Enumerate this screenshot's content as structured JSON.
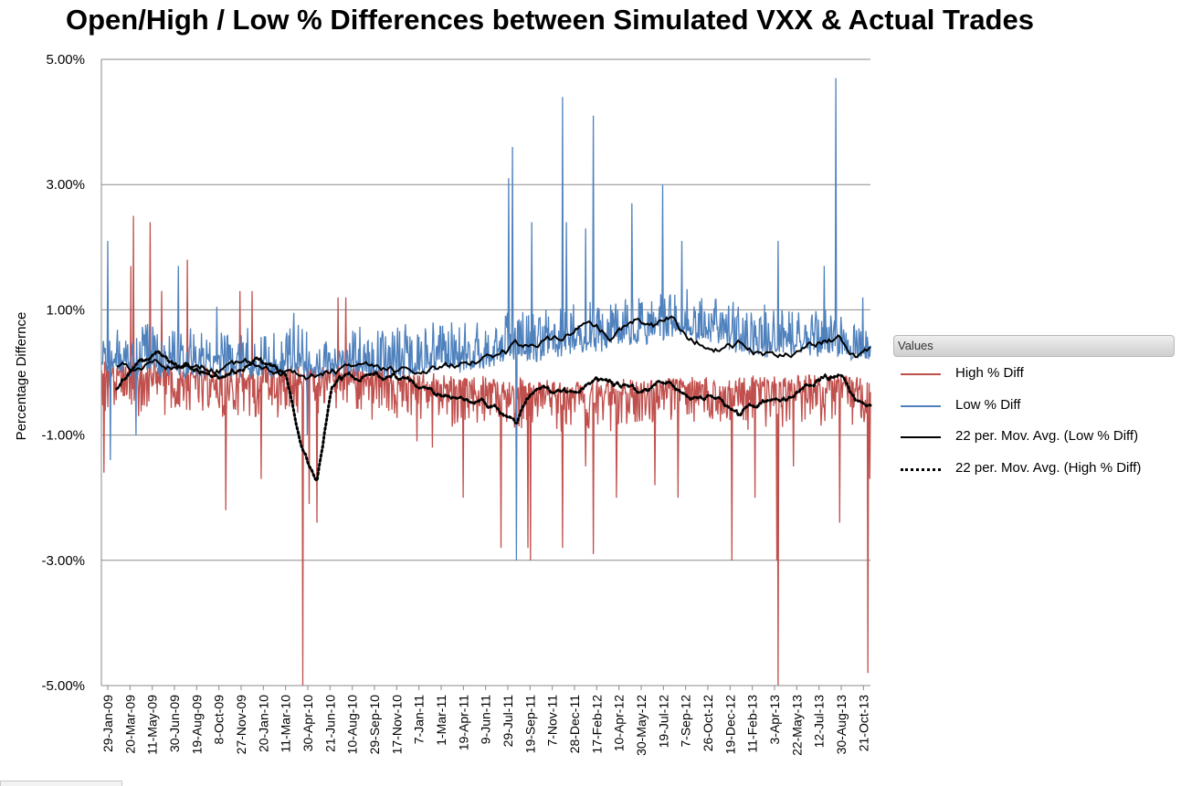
{
  "chart_data": {
    "type": "line",
    "title": "Open/High / Low % Differences between Simulated VXX & Actual Trades",
    "ylabel": "Percentage Differnce",
    "xlabel": "",
    "ylim": [
      -0.05,
      0.05
    ],
    "yticks": [
      0.05,
      0.03,
      0.01,
      -0.01,
      -0.03,
      -0.05
    ],
    "ytick_labels": [
      "5.00%",
      "3.00%",
      "1.00%",
      "-1.00%",
      "-3.00%",
      "-5.00%"
    ],
    "grid": "horizontal",
    "x_start": "2009-01-29",
    "x_end": "2013-10-31",
    "x_tick_labels": [
      "29-Jan-09",
      "20-Mar-09",
      "11-May-09",
      "30-Jun-09",
      "19-Aug-09",
      "8-Oct-09",
      "27-Nov-09",
      "20-Jan-10",
      "11-Mar-10",
      "30-Apr-10",
      "21-Jun-10",
      "10-Aug-10",
      "29-Sep-10",
      "17-Nov-10",
      "7-Jan-11",
      "1-Mar-11",
      "19-Apr-11",
      "9-Jun-11",
      "29-Jul-11",
      "19-Sep-11",
      "7-Nov-11",
      "28-Dec-11",
      "17-Feb-12",
      "10-Apr-12",
      "30-May-12",
      "19-Jul-12",
      "7-Sep-12",
      "26-Oct-12",
      "19-Dec-12",
      "11-Feb-13",
      "3-Apr-13",
      "22-May-13",
      "12-Jul-13",
      "30-Aug-13",
      "21-Oct-13"
    ],
    "legend_position": "right",
    "legend_title": "Values",
    "series": [
      {
        "name": "High % Diff",
        "color": "#c0504d",
        "style": "solid",
        "baseline": [
          [
            0.0,
            0.0005
          ],
          [
            0.08,
            0.0002
          ],
          [
            0.18,
            -0.0004
          ],
          [
            0.28,
            -0.0003
          ],
          [
            0.36,
            -0.0006
          ],
          [
            0.42,
            -0.0015
          ],
          [
            0.5,
            -0.002
          ],
          [
            0.6,
            -0.003
          ],
          [
            0.72,
            -0.0025
          ],
          [
            0.85,
            -0.002
          ],
          [
            1.0,
            -0.002
          ]
        ],
        "noise": 0.0045,
        "spikes": [
          [
            0.003,
            -0.016
          ],
          [
            0.038,
            0.017
          ],
          [
            0.042,
            0.025
          ],
          [
            0.063,
            0.024
          ],
          [
            0.078,
            0.013
          ],
          [
            0.112,
            0.018
          ],
          [
            0.162,
            -0.022
          ],
          [
            0.18,
            0.013
          ],
          [
            0.196,
            0.013
          ],
          [
            0.208,
            -0.017
          ],
          [
            0.262,
            -0.05
          ],
          [
            0.27,
            -0.021
          ],
          [
            0.28,
            -0.024
          ],
          [
            0.308,
            0.012
          ],
          [
            0.318,
            0.012
          ],
          [
            0.41,
            -0.011
          ],
          [
            0.43,
            -0.012
          ],
          [
            0.47,
            -0.02
          ],
          [
            0.52,
            -0.028
          ],
          [
            0.555,
            -0.028
          ],
          [
            0.558,
            -0.03
          ],
          [
            0.6,
            -0.028
          ],
          [
            0.63,
            -0.015
          ],
          [
            0.64,
            -0.029
          ],
          [
            0.67,
            -0.02
          ],
          [
            0.72,
            -0.018
          ],
          [
            0.75,
            -0.02
          ],
          [
            0.82,
            -0.03
          ],
          [
            0.85,
            -0.02
          ],
          [
            0.878,
            -0.03
          ],
          [
            0.88,
            -0.05
          ],
          [
            0.9,
            -0.015
          ],
          [
            0.96,
            -0.024
          ],
          [
            0.997,
            -0.048
          ],
          [
            0.999,
            -0.017
          ]
        ]
      },
      {
        "name": "Low % Diff",
        "color": "#4f81bd",
        "style": "solid",
        "baseline": [
          [
            0.0,
            0.001
          ],
          [
            0.1,
            0.0008
          ],
          [
            0.2,
            0.0008
          ],
          [
            0.3,
            0.0006
          ],
          [
            0.4,
            0.0008
          ],
          [
            0.45,
            0.0015
          ],
          [
            0.5,
            0.002
          ],
          [
            0.6,
            0.004
          ],
          [
            0.7,
            0.006
          ],
          [
            0.76,
            0.007
          ],
          [
            0.85,
            0.004
          ],
          [
            0.95,
            0.004
          ],
          [
            1.0,
            0.003
          ]
        ],
        "noise": 0.0045,
        "spikes": [
          [
            0.008,
            0.021
          ],
          [
            0.012,
            -0.014
          ],
          [
            0.045,
            -0.01
          ],
          [
            0.1,
            0.017
          ],
          [
            0.15,
            0.0105
          ],
          [
            0.25,
            0.0095
          ],
          [
            0.268,
            -0.01
          ],
          [
            0.53,
            0.031
          ],
          [
            0.535,
            0.036
          ],
          [
            0.54,
            -0.03
          ],
          [
            0.56,
            0.024
          ],
          [
            0.6,
            0.044
          ],
          [
            0.605,
            0.024
          ],
          [
            0.63,
            0.023
          ],
          [
            0.64,
            0.041
          ],
          [
            0.69,
            0.027
          ],
          [
            0.73,
            0.03
          ],
          [
            0.755,
            0.021
          ],
          [
            0.88,
            0.021
          ],
          [
            0.94,
            0.017
          ],
          [
            0.955,
            0.047
          ],
          [
            0.99,
            0.012
          ]
        ]
      },
      {
        "name": "22 per. Mov. Avg. (Low % Diff)",
        "color": "#000000",
        "style": "solid",
        "points": [
          [
            0.02,
            0.0012
          ],
          [
            0.05,
            0.0008
          ],
          [
            0.08,
            0.0014
          ],
          [
            0.12,
            0.0008
          ],
          [
            0.16,
            0.0006
          ],
          [
            0.2,
            0.0015
          ],
          [
            0.24,
            0.0006
          ],
          [
            0.27,
            -0.0007
          ],
          [
            0.3,
            0.0005
          ],
          [
            0.35,
            0.0008
          ],
          [
            0.4,
            0.0006
          ],
          [
            0.45,
            0.0012
          ],
          [
            0.5,
            0.0028
          ],
          [
            0.55,
            0.0045
          ],
          [
            0.6,
            0.0058
          ],
          [
            0.63,
            0.0085
          ],
          [
            0.66,
            0.006
          ],
          [
            0.7,
            0.0085
          ],
          [
            0.72,
            0.0075
          ],
          [
            0.74,
            0.009
          ],
          [
            0.76,
            0.0055
          ],
          [
            0.8,
            0.004
          ],
          [
            0.83,
            0.0045
          ],
          [
            0.86,
            0.003
          ],
          [
            0.9,
            0.0038
          ],
          [
            0.93,
            0.0048
          ],
          [
            0.96,
            0.006
          ],
          [
            0.98,
            0.0028
          ],
          [
            1.0,
            0.0035
          ]
        ]
      },
      {
        "name": "22 per. Mov. Avg. (High % Diff)",
        "color": "#000000",
        "style": "dotted",
        "points": [
          [
            0.02,
            -0.0025
          ],
          [
            0.05,
            0.0005
          ],
          [
            0.08,
            0.0025
          ],
          [
            0.12,
            0.0008
          ],
          [
            0.16,
            -0.0008
          ],
          [
            0.2,
            0.002
          ],
          [
            0.24,
            -0.0005
          ],
          [
            0.26,
            -0.012
          ],
          [
            0.28,
            -0.0175
          ],
          [
            0.3,
            -0.002
          ],
          [
            0.35,
            0.0004
          ],
          [
            0.4,
            -0.001
          ],
          [
            0.45,
            -0.0035
          ],
          [
            0.5,
            -0.005
          ],
          [
            0.54,
            -0.008
          ],
          [
            0.56,
            -0.0035
          ],
          [
            0.6,
            -0.004
          ],
          [
            0.63,
            -0.0025
          ],
          [
            0.66,
            -0.0015
          ],
          [
            0.7,
            -0.0035
          ],
          [
            0.73,
            -0.002
          ],
          [
            0.76,
            -0.003
          ],
          [
            0.8,
            -0.0045
          ],
          [
            0.83,
            -0.007
          ],
          [
            0.86,
            -0.005
          ],
          [
            0.9,
            -0.004
          ],
          [
            0.93,
            -0.0015
          ],
          [
            0.96,
            -0.0005
          ],
          [
            0.98,
            -0.0045
          ],
          [
            1.0,
            -0.004
          ]
        ]
      }
    ]
  }
}
